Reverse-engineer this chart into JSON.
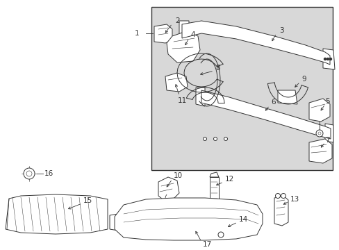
{
  "background_color": "#ffffff",
  "line_color": "#333333",
  "fig_width": 4.89,
  "fig_height": 3.6,
  "dpi": 100
}
